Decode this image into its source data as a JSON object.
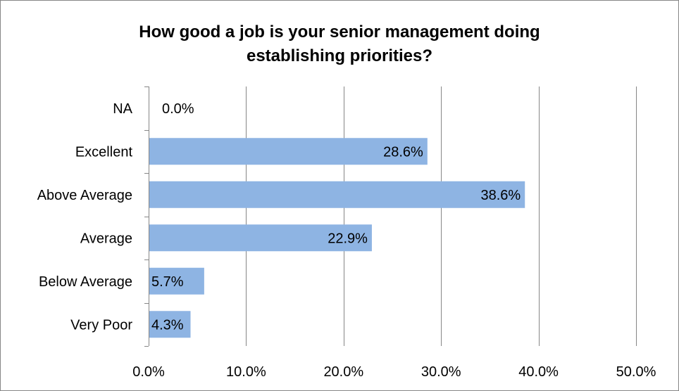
{
  "chart_data": {
    "type": "bar",
    "orientation": "horizontal",
    "title": "How good a job is your senior management doing establishing priorities?",
    "title_lines": [
      "How good a job is your senior management doing",
      "establishing priorities?"
    ],
    "categories": [
      "NA",
      "Excellent",
      "Above Average",
      "Average",
      "Below Average",
      "Very Poor"
    ],
    "values": [
      0.0,
      28.6,
      38.6,
      22.9,
      5.7,
      4.3
    ],
    "data_labels": [
      "0.0%",
      "28.6%",
      "38.6%",
      "22.9%",
      "5.7%",
      "4.3%"
    ],
    "xlim": [
      0,
      50
    ],
    "x_ticks": [
      0,
      10,
      20,
      30,
      40,
      50
    ],
    "x_tick_labels": [
      "0.0%",
      "10.0%",
      "20.0%",
      "30.0%",
      "40.0%",
      "50.0%"
    ],
    "xlabel": "",
    "ylabel": "",
    "grid": "vertical",
    "legend": "none",
    "bar_color": "#8EB4E3",
    "grid_color": "#868686"
  }
}
